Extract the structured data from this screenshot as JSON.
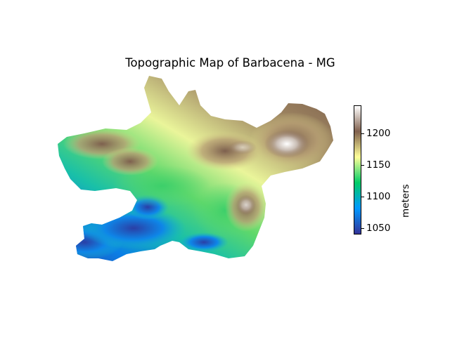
{
  "title": "Topographic Map of Barbacena - MG",
  "colorbar": {
    "label": "meters",
    "min": 1040,
    "max": 1245,
    "ticks": [
      {
        "value": 1050,
        "label": "1050"
      },
      {
        "value": 1100,
        "label": "1100"
      },
      {
        "value": 1150,
        "label": "1150"
      },
      {
        "value": 1200,
        "label": "1200"
      }
    ],
    "colormap": "terrain",
    "stops": [
      "#333399",
      "#0099ff",
      "#00cc66",
      "#ffff99",
      "#80604d",
      "#ffffff"
    ]
  },
  "map": {
    "region": "Barbacena - MG",
    "lowlands": "southwest (blue)",
    "highlands": "east-northeast (white/brown)"
  }
}
